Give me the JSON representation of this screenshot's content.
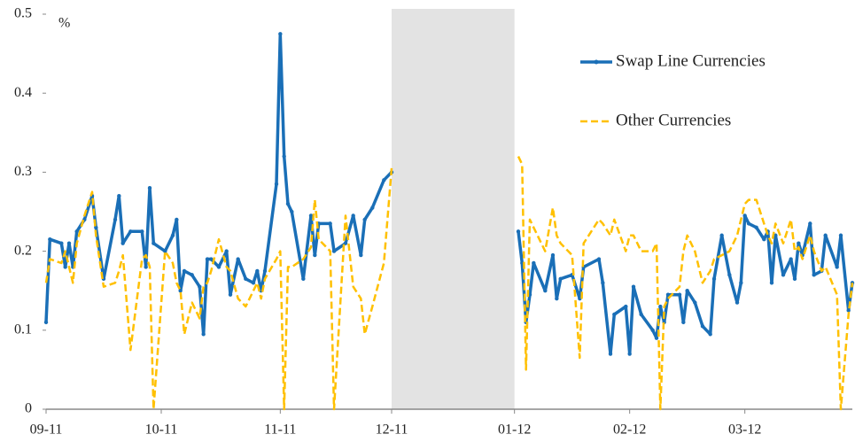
{
  "chart_data": {
    "type": "line",
    "y_unit_label": "%",
    "x": [
      0,
      1,
      4,
      5,
      6,
      7,
      8,
      10,
      12,
      13,
      15,
      18,
      19,
      20,
      22,
      25,
      26,
      27,
      28,
      31,
      33,
      34,
      35,
      36,
      38,
      40,
      41,
      42,
      43,
      45,
      47,
      48,
      50,
      52,
      54,
      55,
      56,
      57,
      60,
      61,
      62,
      63,
      64,
      67,
      69,
      70,
      71,
      74,
      75,
      78,
      80,
      82,
      83,
      85,
      88,
      90,
      106,
      123,
      124,
      125,
      126,
      127,
      130,
      132,
      133,
      134,
      137,
      139,
      140,
      144,
      145,
      147,
      148,
      151,
      152,
      153,
      155,
      158,
      159,
      160,
      161,
      162,
      165,
      166,
      167,
      169,
      171,
      173,
      174,
      176,
      178,
      180,
      181,
      182,
      183,
      185,
      187,
      188,
      189,
      190,
      192,
      194,
      195,
      196,
      197,
      199,
      200,
      202,
      203,
      206,
      207,
      209,
      210
    ],
    "series": [
      {
        "name": "Swap Line Currencies",
        "color": "#1a6fb7",
        "dash": false,
        "markers": true,
        "values": [
          0.11,
          0.215,
          0.21,
          0.18,
          0.21,
          0.18,
          0.225,
          0.24,
          0.27,
          0.23,
          0.165,
          0.24,
          0.27,
          0.21,
          0.225,
          0.225,
          0.18,
          0.28,
          0.21,
          0.2,
          0.22,
          0.24,
          0.15,
          0.175,
          0.17,
          0.155,
          0.095,
          0.19,
          0.19,
          0.18,
          0.2,
          0.145,
          0.19,
          0.165,
          0.16,
          0.175,
          0.15,
          0.175,
          0.285,
          0.475,
          0.32,
          0.26,
          0.25,
          0.165,
          0.245,
          0.195,
          0.235,
          0.235,
          0.2,
          0.21,
          0.245,
          0.195,
          0.24,
          0.255,
          0.29,
          0.3,
          null,
          0.225,
          0.185,
          0.11,
          0.145,
          0.185,
          0.15,
          0.195,
          0.14,
          0.165,
          0.17,
          0.14,
          0.18,
          0.19,
          0.16,
          0.07,
          0.12,
          0.13,
          0.07,
          0.155,
          0.12,
          0.1,
          0.09,
          0.13,
          0.11,
          0.145,
          0.145,
          0.11,
          0.15,
          0.135,
          0.105,
          0.095,
          0.165,
          0.22,
          0.17,
          0.135,
          0.16,
          0.245,
          0.235,
          0.23,
          0.215,
          0.225,
          0.16,
          0.22,
          0.17,
          0.19,
          0.165,
          0.21,
          0.195,
          0.235,
          0.17,
          0.175,
          0.22,
          0.18,
          0.22,
          0.125,
          0.16
        ]
      },
      {
        "name": "Other Currencies",
        "color": "#ffc000",
        "dash": true,
        "markers": false,
        "values": [
          0.16,
          0.19,
          0.185,
          0.2,
          0.18,
          0.16,
          0.21,
          0.245,
          0.275,
          0.22,
          0.155,
          0.16,
          0.175,
          0.195,
          0.075,
          0.19,
          0.195,
          0.18,
          0.0,
          0.2,
          0.185,
          0.16,
          0.15,
          0.095,
          0.135,
          0.115,
          0.155,
          0.16,
          0.175,
          0.215,
          0.18,
          0.175,
          0.14,
          0.13,
          0.15,
          0.16,
          0.14,
          0.165,
          0.19,
          0.2,
          0.0,
          0.18,
          0.18,
          0.19,
          0.205,
          0.265,
          0.215,
          0.2,
          0.0,
          0.245,
          0.155,
          0.14,
          0.095,
          0.13,
          0.185,
          0.305,
          null,
          0.32,
          0.31,
          0.05,
          0.24,
          0.23,
          0.2,
          0.255,
          0.22,
          0.21,
          0.195,
          0.065,
          0.21,
          0.24,
          0.235,
          0.22,
          0.24,
          0.2,
          0.22,
          0.22,
          0.2,
          0.2,
          0.21,
          0.0,
          0.13,
          0.14,
          0.155,
          0.2,
          0.22,
          0.2,
          0.16,
          0.175,
          0.19,
          0.195,
          0.2,
          0.22,
          0.24,
          0.26,
          0.265,
          0.265,
          0.235,
          0.22,
          0.21,
          0.235,
          0.21,
          0.24,
          0.2,
          0.205,
          0.19,
          0.22,
          0.2,
          0.175,
          0.18,
          0.145,
          0.0,
          0.12,
          0.16
        ]
      }
    ],
    "xlim": [
      0,
      210
    ],
    "xticks": [
      {
        "value": 0,
        "label": "09-11"
      },
      {
        "value": 30,
        "label": "10-11"
      },
      {
        "value": 61,
        "label": "11-11"
      },
      {
        "value": 90,
        "label": "12-11"
      },
      {
        "value": 122,
        "label": "01-12"
      },
      {
        "value": 152,
        "label": "02-12"
      },
      {
        "value": 182,
        "label": "03-12"
      }
    ],
    "ylim": [
      0,
      0.5
    ],
    "yticks": [
      0,
      0.1,
      0.2,
      0.3,
      0.4,
      0.5
    ],
    "shaded_span": [
      90,
      122
    ],
    "shade_color": "#e3e3e3",
    "grid": false,
    "legend": "upper right"
  }
}
